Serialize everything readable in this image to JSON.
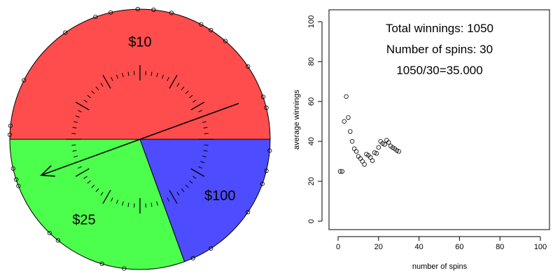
{
  "chart_data": [
    {
      "type": "pie",
      "slices": [
        {
          "label": "$10",
          "value": 180,
          "color": "#FF4D4D"
        },
        {
          "label": "$25",
          "value": 110,
          "color": "#4DFF4D"
        },
        {
          "label": "$100",
          "value": 70,
          "color": "#4D4DFF"
        }
      ],
      "spinner_angle_deg": 200,
      "landing_points_deg": [
        84,
        103,
        110,
        125,
        153,
        174,
        178,
        193,
        198,
        201,
        226,
        231,
        253,
        263,
        294,
        303,
        326,
        340,
        346,
        355,
        14,
        19,
        34,
        49,
        57,
        62,
        76,
        91
      ]
    },
    {
      "type": "scatter",
      "xlabel": "number of spins",
      "ylabel": "average winnings",
      "xlim": [
        0,
        100
      ],
      "ylim": [
        0,
        100
      ],
      "xticks": [
        0,
        20,
        40,
        60,
        80,
        100
      ],
      "yticks": [
        0,
        20,
        40,
        60,
        80,
        100
      ],
      "x": [
        1,
        2,
        3,
        4,
        5,
        6,
        7,
        8,
        9,
        10,
        11,
        12,
        13,
        14,
        15,
        16,
        17,
        18,
        19,
        20,
        21,
        22,
        23,
        24,
        25,
        26,
        27,
        28,
        29,
        30
      ],
      "y": [
        25,
        25,
        50,
        62.5,
        52,
        45,
        40,
        36.3,
        35,
        32.5,
        31.4,
        30,
        28.5,
        33.6,
        33,
        32,
        30.3,
        34.4,
        34,
        37,
        40,
        39,
        38.5,
        40.6,
        39.5,
        37.7,
        36.9,
        36.3,
        35.5,
        35
      ],
      "annotations": [
        "Total winnings: 1050",
        "Number of spins: 30",
        "1050/30=35.000"
      ]
    }
  ]
}
